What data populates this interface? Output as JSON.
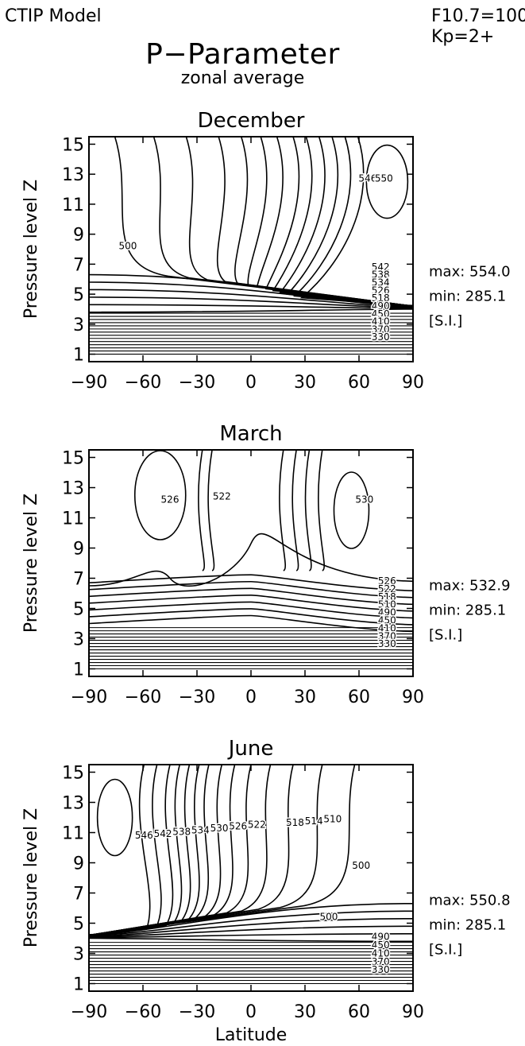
{
  "header": {
    "model": "CTIP Model",
    "f107": "F10.7=100",
    "kp": "Kp=2+"
  },
  "title": "P−Parameter",
  "subtitle": "zonal average",
  "chart_data": [
    {
      "type": "contour",
      "title": "December",
      "xlabel": "",
      "ylabel": "Pressure level Z",
      "x_ticks": [
        -90,
        -60,
        -30,
        0,
        30,
        60,
        90
      ],
      "y_ticks": [
        1,
        3,
        5,
        7,
        9,
        11,
        13,
        15
      ],
      "xlim": [
        -90,
        90
      ],
      "ylim": [
        0.5,
        15.5
      ],
      "contour_labels": [
        "500",
        "542",
        "538",
        "534",
        "526",
        "518",
        "490",
        "450",
        "410",
        "370",
        "330",
        "546",
        "550"
      ],
      "stats": {
        "max": "max: 554.0",
        "min": "min: 285.1",
        "units": "[S.I.]"
      }
    },
    {
      "type": "contour",
      "title": "March",
      "xlabel": "",
      "ylabel": "Pressure level Z",
      "x_ticks": [
        -90,
        -60,
        -30,
        0,
        30,
        60,
        90
      ],
      "y_ticks": [
        1,
        3,
        5,
        7,
        9,
        11,
        13,
        15
      ],
      "xlim": [
        -90,
        90
      ],
      "ylim": [
        0.5,
        15.5
      ],
      "contour_labels": [
        "526",
        "522",
        "530",
        "526",
        "522",
        "518",
        "510",
        "490",
        "450",
        "410",
        "370",
        "330"
      ],
      "stats": {
        "max": "max: 532.9",
        "min": "min: 285.1",
        "units": "[S.I.]"
      }
    },
    {
      "type": "contour",
      "title": "June",
      "xlabel": "Latitude",
      "ylabel": "Pressure level Z",
      "x_ticks": [
        -90,
        -60,
        -30,
        0,
        30,
        60,
        90
      ],
      "y_ticks": [
        1,
        3,
        5,
        7,
        9,
        11,
        13,
        15
      ],
      "xlim": [
        -90,
        90
      ],
      "ylim": [
        0.5,
        15.5
      ],
      "contour_labels": [
        "546",
        "542",
        "538",
        "534",
        "530",
        "526",
        "522",
        "518",
        "514",
        "510",
        "500",
        "500",
        "490",
        "450",
        "410",
        "370",
        "330"
      ],
      "stats": {
        "max": "max: 550.8",
        "min": "min: 285.1",
        "units": "[S.I.]"
      }
    }
  ]
}
